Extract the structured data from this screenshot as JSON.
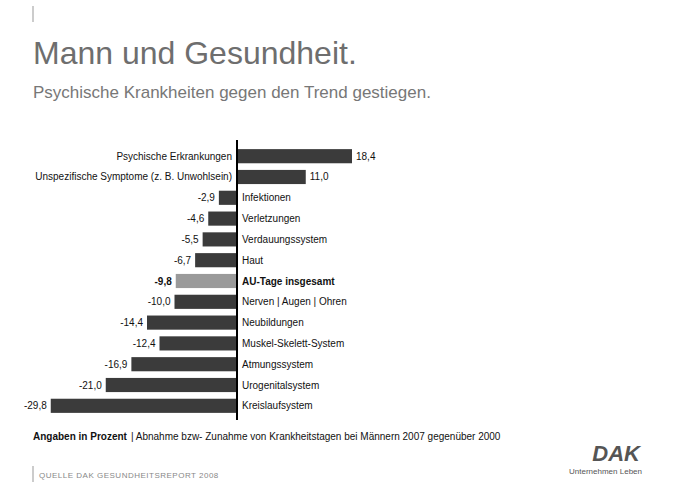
{
  "chart_data": {
    "type": "bar",
    "orientation": "horizontal",
    "title": "Mann und Gesundheit.",
    "subtitle": "Psychische Krankheiten gegen den Trend gestiegen.",
    "categories": [
      "Psychische Erkrankungen",
      "Unspezifische Symptome (z. B. Unwohlsein)",
      "Infektionen",
      "Verletzungen",
      "Verdauungssystem",
      "Haut",
      "AU-Tage insgesamt",
      "Nerven | Augen | Ohren",
      "Neubildungen",
      "Muskel-Skelett-System",
      "Atmungssystem",
      "Urogenitalsystem",
      "Kreislaufsystem"
    ],
    "values": [
      18.4,
      11.0,
      -2.9,
      -4.6,
      -5.5,
      -6.7,
      -9.8,
      -10.0,
      -14.4,
      -12.4,
      -16.9,
      -21.0,
      -29.8
    ],
    "value_labels": [
      "18,4",
      "11,0",
      "-2,9",
      "-4,6",
      "-5,5",
      "-6,7",
      "-9,8",
      "-10,0",
      "-14,4",
      "-12,4",
      "-16,9",
      "-21,0",
      "-29,8"
    ],
    "colors": [
      "#3b3b3b",
      "#3b3b3b",
      "#3b3b3b",
      "#3b3b3b",
      "#3b3b3b",
      "#3b3b3b",
      "#9a9a9a",
      "#3b3b3b",
      "#3b3b3b",
      "#3b3b3b",
      "#3b3b3b",
      "#3b3b3b",
      "#3b3b3b"
    ],
    "xlim": [
      -30,
      20
    ],
    "data_labels": true,
    "tick_labels": false,
    "grid": false,
    "annotations": [
      "Angaben in Prozent",
      "| Abnahme bzw- Zunahme von Krankheitstagen bei Männern 2007 gegenüber 2000",
      "QUELLE DAK GESUNDHEITSREPORT 2008",
      "DAK",
      "Unternehmen Leben"
    ]
  }
}
